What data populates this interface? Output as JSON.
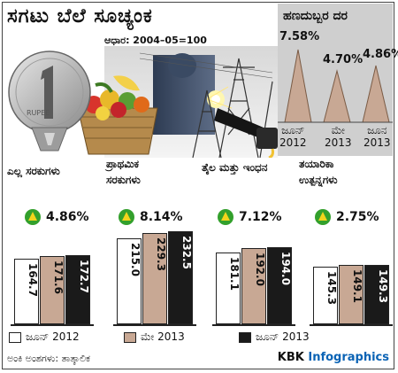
{
  "header": {
    "title": "ಸಗಟು ಬೆಲೆ ಸೂಚ್ಯಂಕ",
    "base_note": "ಆಧಾರ: 2004–05=100"
  },
  "colors": {
    "june2012": "#ffffff",
    "may2013": "#c8a894",
    "june2013": "#1a1a1a",
    "up_badge": "#33a02c",
    "up_arrow": "#f2d41c",
    "brand_accent": "#0a63b5",
    "inflation_panel": "#cfcfcf",
    "triangle": "#c8a894"
  },
  "inflation": {
    "title": "ಹಣದುಬ್ಬರ ದರ",
    "items": [
      {
        "value": "7.58%",
        "label_line1": "ಜೂನ್",
        "label_line2": "2012",
        "number": 7.58
      },
      {
        "value": "4.70%",
        "label_line1": "ಮೇ",
        "label_line2": "2013",
        "number": 4.7
      },
      {
        "value": "4.86%",
        "label_line1": "ಜೂನ",
        "label_line2": "2013",
        "number": 4.86
      }
    ]
  },
  "legend": {
    "items": [
      {
        "label": "ಜೂನ್ 2012",
        "color_key": "june2012"
      },
      {
        "label": "ಮೇ 2013",
        "color_key": "may2013"
      },
      {
        "label": "ಜೂನ್ 2013",
        "color_key": "june2013"
      }
    ]
  },
  "footnote": "ಅಂಕಿ ಅಂಶಗಳು: ತಾತ್ಕಾಲಿಕ",
  "credit": {
    "brand": "KBK ",
    "accent": "Infographics"
  },
  "chart_data": {
    "type": "bar",
    "categories": [
      "ಎಲ್ಲ ಸರಕುಗಳು",
      "ಪ್ರಾಥಮಿಕ ಸರಕುಗಳು",
      "ಇಂಧನ",
      "ತಯಾರಿಕಾ ಉತ್ಪನ್ನಗಳು"
    ],
    "category_labels": [
      [
        "ಎಲ್ಲ ಸರಕುಗಳು"
      ],
      [
        "ಪ್ರಾಥಮಿಕ",
        "ಸರಕುಗಳು"
      ],
      [
        "ತೈಲ ಮತ್ತು ಇಂಧನ"
      ],
      [
        "ತಯಾರಿಕಾ",
        "ಉತ್ಪನ್ನಗಳು"
      ]
    ],
    "changes": [
      "4.86%",
      "8.14%",
      "7.12%",
      "2.75%"
    ],
    "series": [
      {
        "name": "ಜೂನ್ 2012",
        "values": [
          164.7,
          215.0,
          181.1,
          145.3
        ],
        "labels": [
          "164.7",
          "215.0",
          "181.1",
          "145.3"
        ]
      },
      {
        "name": "ಮೇ 2013",
        "values": [
          171.6,
          229.3,
          192.0,
          149.1
        ],
        "labels": [
          "171.6",
          "229.3",
          "192.0",
          "149.1"
        ]
      },
      {
        "name": "ಜೂನ್ 2013",
        "values": [
          172.7,
          232.5,
          194.0,
          149.3
        ],
        "labels": [
          "172.7",
          "232.5",
          "194.0",
          "149.3"
        ]
      }
    ]
  }
}
